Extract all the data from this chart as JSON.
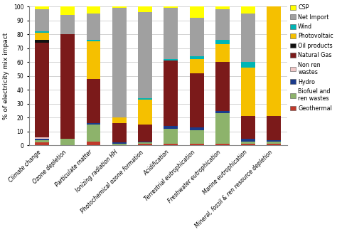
{
  "categories": [
    "Climate change",
    "Ozone depletion",
    "Particulate matter",
    "Ionizing radiation HH",
    "Photochemical ozone formation",
    "Acidification",
    "Terrestrial eutrophication",
    "Freshwater eutrophication",
    "Marine eutrophication",
    "Mineral, fossil & ren resource depletion"
  ],
  "series": {
    "Geothermal": [
      2,
      0,
      3,
      0,
      1,
      1,
      1,
      1,
      1,
      1
    ],
    "Biofuel and\nren wastes": [
      2,
      5,
      12,
      1,
      1,
      11,
      10,
      22,
      2,
      2
    ],
    "Hydro": [
      1,
      0,
      1,
      1,
      1,
      2,
      2,
      2,
      2,
      1
    ],
    "Non ren\nwastes": [
      1,
      0,
      0,
      0,
      0,
      0,
      0,
      0,
      0,
      0
    ],
    "Natural Gas": [
      68,
      75,
      32,
      14,
      12,
      47,
      39,
      35,
      16,
      17
    ],
    "Oil products": [
      2,
      0,
      0,
      0,
      0,
      0,
      0,
      0,
      0,
      0
    ],
    "Photovoltaic": [
      5,
      0,
      27,
      4,
      18,
      0,
      10,
      13,
      35,
      80
    ],
    "Wind": [
      1,
      0,
      1,
      0,
      1,
      1,
      2,
      3,
      4,
      2
    ],
    "Net Import": [
      16,
      14,
      19,
      79,
      62,
      37,
      28,
      22,
      35,
      5
    ],
    "CSP": [
      2,
      6,
      5,
      1,
      4,
      1,
      8,
      2,
      5,
      2
    ]
  },
  "colors": {
    "Geothermal": "#c0392b",
    "Biofuel and\nren wastes": "#8db36b",
    "Hydro": "#1a3a8a",
    "Non ren\nwastes": "#f0c8c8",
    "Natural Gas": "#7b1a1a",
    "Oil products": "#111111",
    "Photovoltaic": "#f5c000",
    "Wind": "#00b5b5",
    "Net Import": "#a0a0a0",
    "CSP": "#ffff00"
  },
  "stack_order": [
    "Geothermal",
    "Biofuel and\nren wastes",
    "Hydro",
    "Non ren\nwastes",
    "Natural Gas",
    "Oil products",
    "Photovoltaic",
    "Wind",
    "Net Import",
    "CSP"
  ],
  "legend_order": [
    "CSP",
    "Net Import",
    "Wind",
    "Photovoltaic",
    "Oil products",
    "Natural Gas",
    "Non ren\nwastes",
    "Hydro",
    "Biofuel and\nren wastes",
    "Geothermal"
  ],
  "ylabel": "% of electricity mix impact",
  "ylim": [
    0,
    100
  ],
  "yticks": [
    0,
    10,
    20,
    30,
    40,
    50,
    60,
    70,
    80,
    90,
    100
  ],
  "bar_width": 0.55,
  "bg_color": "#ffffff",
  "grid_color": "#cccccc",
  "title_fontsize": 7,
  "axis_fontsize": 6.5,
  "tick_fontsize": 5.5,
  "legend_fontsize": 5.8
}
